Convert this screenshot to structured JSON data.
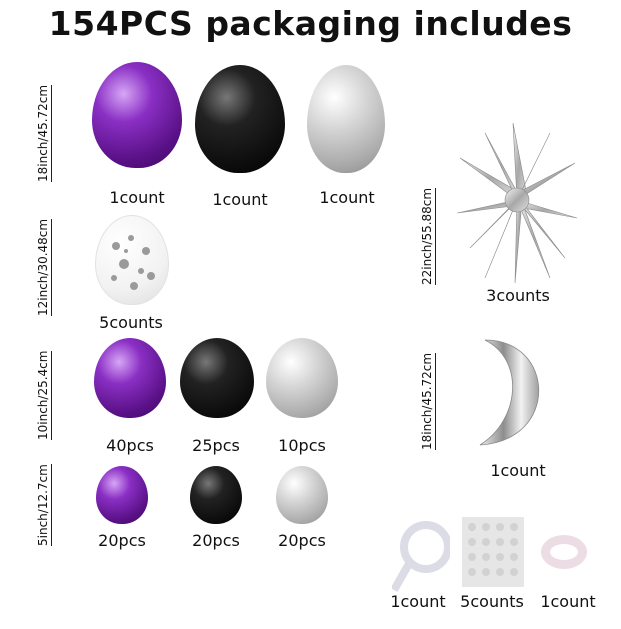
{
  "title": "154PCS  packaging includes",
  "sizes": {
    "s18": "18inch/45.72cm",
    "s12": "12inch/30.48cm",
    "s10": "10inch/25.4cm",
    "s5": "5inch/12.7cm",
    "star": "22inch/55.88cm",
    "moon": "18inch/45.72cm"
  },
  "row18": [
    {
      "color": "purple",
      "count": "1count"
    },
    {
      "color": "black",
      "count": "1count"
    },
    {
      "color": "silver",
      "count": "1count"
    }
  ],
  "row12": [
    {
      "color": "clear confetti",
      "count": "5counts"
    }
  ],
  "row10": [
    {
      "color": "purple",
      "count": "40pcs"
    },
    {
      "color": "black",
      "count": "25pcs"
    },
    {
      "color": "silver",
      "count": "10pcs"
    }
  ],
  "row5": [
    {
      "color": "purple",
      "count": "20pcs"
    },
    {
      "color": "black",
      "count": "20pcs"
    },
    {
      "color": "silver",
      "count": "20pcs"
    }
  ],
  "star": {
    "count": "3counts"
  },
  "moon": {
    "count": "1count"
  },
  "accessories": [
    {
      "item": "balloon strip",
      "count": "1count"
    },
    {
      "item": "glue dots",
      "count": "5counts"
    },
    {
      "item": "ribbon",
      "count": "1count"
    }
  ],
  "colors": {
    "purple": "#6a1b9a",
    "black": "#111111",
    "silver": "#b5b5b5"
  }
}
